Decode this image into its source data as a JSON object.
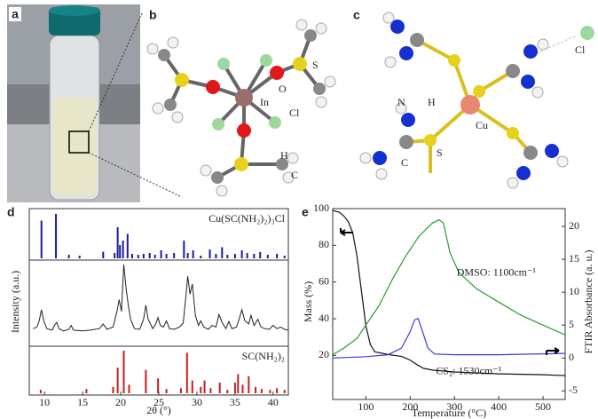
{
  "panel_a": {
    "label": "a"
  },
  "panel_b": {
    "label": "b",
    "atoms": [
      "In",
      "O",
      "S",
      "Cl",
      "H",
      "C"
    ]
  },
  "panel_c": {
    "label": "c",
    "atoms": [
      "Cl",
      "N",
      "H",
      "Cu",
      "C",
      "S"
    ]
  },
  "chart_data": [
    {
      "type": "xrd",
      "panel": "d",
      "x_label": "2θ (°)",
      "y_label": "Intensity (a.u.)",
      "xlim": [
        8,
        42
      ],
      "xticks": [
        10,
        15,
        20,
        25,
        30,
        35,
        40
      ],
      "ylim": [
        0,
        100
      ],
      "series": [
        {
          "name": "Cu(SC(NH₂)₂)₃Cl",
          "color": "#1a1aa0",
          "style": "sticks",
          "x": [
            9.6,
            11.5,
            13.2,
            14.6,
            17.7,
            19.2,
            19.6,
            19.9,
            20.3,
            20.9,
            21.5,
            22.3,
            23.0,
            23.8,
            24.5,
            25.3,
            26.0,
            27.0,
            28.3,
            28.8,
            29.5,
            30.5,
            31.7,
            32.5,
            33.3,
            34.0,
            35.0,
            35.9,
            36.6,
            37.5,
            38.3,
            39.3,
            40.5,
            41.5
          ],
          "values": [
            85,
            100,
            8,
            6,
            15,
            12,
            70,
            30,
            40,
            55,
            10,
            8,
            10,
            12,
            8,
            18,
            10,
            12,
            40,
            12,
            18,
            6,
            20,
            10,
            25,
            8,
            10,
            18,
            12,
            10,
            14,
            8,
            10,
            6
          ]
        },
        {
          "color": "#222222",
          "style": "line",
          "x": [
            8.5,
            9,
            9.3,
            9.6,
            9.9,
            10.3,
            11,
            11.3,
            11.6,
            11.9,
            12.5,
            13.2,
            13.5,
            13.8,
            15,
            16,
            17.2,
            17.7,
            18.2,
            19,
            19.5,
            19.8,
            20.1,
            20.4,
            20.7,
            21,
            21.3,
            21.8,
            22.5,
            23,
            23.3,
            23.6,
            24.2,
            24.6,
            24.9,
            25.2,
            25.6,
            26,
            26.4,
            27,
            27.7,
            28.2,
            28.5,
            28.8,
            29.1,
            29.4,
            29.8,
            30.2,
            30.5,
            30.9,
            31.5,
            32,
            32.5,
            32.9,
            33.3,
            33.8,
            34.2,
            34.6,
            35.2,
            35.6,
            35.9,
            36.3,
            36.8,
            37.1,
            37.5,
            38,
            38.4,
            38.9,
            39.5,
            40,
            40.5,
            41,
            41.5,
            42
          ],
          "values": [
            18,
            20,
            28,
            42,
            28,
            18,
            16,
            22,
            26,
            18,
            15,
            17,
            22,
            16,
            15,
            16,
            18,
            24,
            17,
            20,
            40,
            55,
            40,
            100,
            70,
            48,
            30,
            18,
            17,
            30,
            48,
            30,
            18,
            24,
            32,
            22,
            20,
            28,
            18,
            17,
            20,
            25,
            55,
            85,
            62,
            75,
            35,
            22,
            28,
            20,
            17,
            22,
            20,
            36,
            26,
            18,
            27,
            18,
            20,
            32,
            42,
            28,
            24,
            35,
            22,
            30,
            20,
            18,
            17,
            22,
            18,
            20,
            17,
            16
          ]
        },
        {
          "name": "SC(NH₂)₂",
          "color": "#c81e1e",
          "style": "sticks",
          "x": [
            9.5,
            15.5,
            19.0,
            19.6,
            20.4,
            21.1,
            23.3,
            24.9,
            26.0,
            27.9,
            28.7,
            29.4,
            30.5,
            31.0,
            31.8,
            33.0,
            34.0,
            35.0,
            35.4,
            36.0,
            36.8,
            37.7,
            38.5,
            39.6,
            40.5,
            41.5
          ],
          "values": [
            8,
            10,
            15,
            60,
            100,
            20,
            55,
            35,
            10,
            12,
            95,
            30,
            15,
            30,
            12,
            25,
            8,
            25,
            45,
            20,
            40,
            15,
            10,
            8,
            12,
            8
          ]
        }
      ]
    },
    {
      "type": "line",
      "panel": "e",
      "x_label": "Temperature (°C)",
      "y_label": "Mass (%)",
      "y2_label": "FTIR Absorbance (a. u.)",
      "xlim": [
        25,
        550
      ],
      "xticks": [
        100,
        200,
        300,
        400,
        500
      ],
      "ylim": [
        -4,
        100
      ],
      "yticks": [
        20,
        40,
        60,
        80,
        100
      ],
      "y2lim": [
        -6.3,
        22.7
      ],
      "y2ticks": [
        -5,
        0,
        5,
        10,
        15,
        20
      ],
      "series": [
        {
          "color": "#111111",
          "x": [
            25,
            40,
            50,
            60,
            70,
            80,
            90,
            100,
            110,
            120,
            150,
            180,
            200,
            215,
            230,
            250,
            300,
            400,
            500,
            550
          ],
          "values": [
            99,
            98,
            96,
            93,
            87,
            74,
            55,
            36,
            26,
            22,
            20.5,
            19.5,
            17.5,
            15,
            13,
            12,
            11,
            10,
            9.5,
            9
          ]
        },
        {
          "name": "DMSO: 1100cm⁻¹",
          "color": "#2a9a2a",
          "axis": "y2",
          "x": [
            25,
            50,
            80,
            100,
            130,
            160,
            190,
            220,
            250,
            265,
            275,
            290,
            310,
            350,
            400,
            450,
            500,
            550
          ],
          "values": [
            0.5,
            1.5,
            3,
            5,
            8,
            12,
            15.5,
            18.5,
            20.5,
            21,
            20.5,
            16,
            13,
            10.5,
            8.5,
            6.5,
            5,
            3.5
          ]
        },
        {
          "name": "CS₂: 1530cm⁻¹",
          "color": "#3a3ae0",
          "axis": "y2",
          "x": [
            25,
            100,
            150,
            180,
            200,
            210,
            218,
            228,
            240,
            255,
            300,
            400,
            550
          ],
          "values": [
            0,
            0.2,
            0.5,
            1.5,
            4,
            5.8,
            6,
            4,
            1.5,
            0.6,
            0.5,
            0.5,
            0.7
          ]
        }
      ]
    }
  ]
}
